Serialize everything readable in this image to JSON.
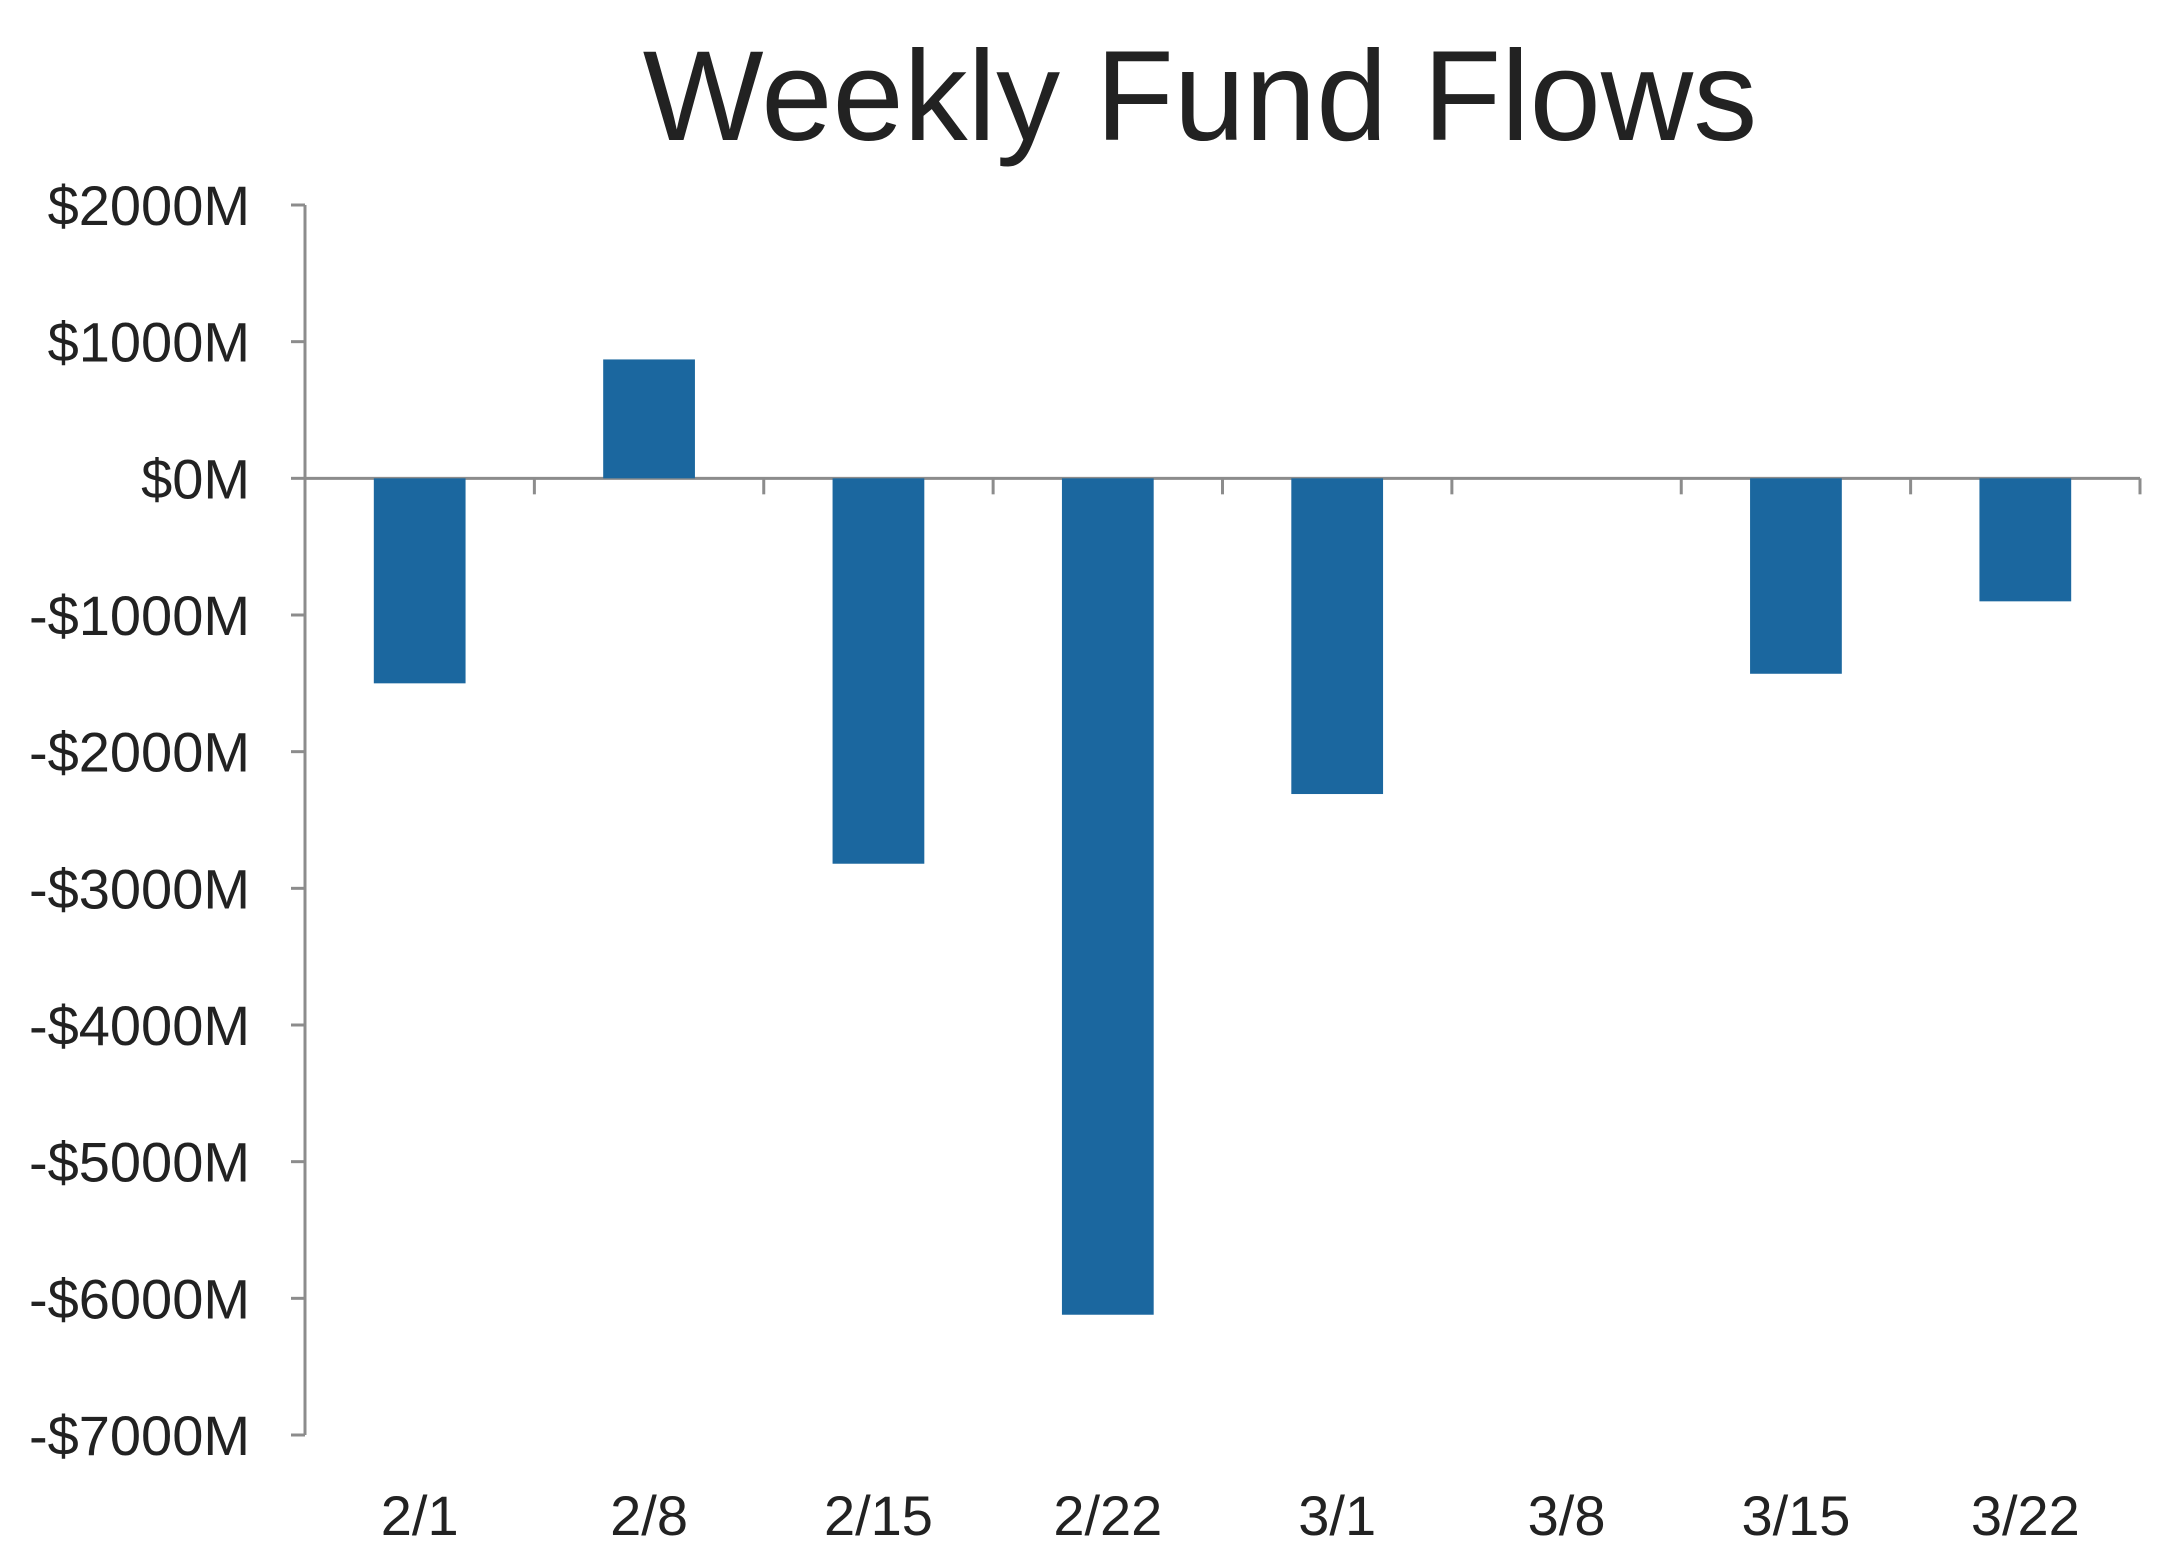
{
  "chart_data": {
    "type": "bar",
    "title": "Weekly Fund Flows",
    "xlabel": "",
    "ylabel": "",
    "categories": [
      "2/1",
      "2/8",
      "2/15",
      "2/22",
      "3/1",
      "3/8",
      "3/15",
      "3/22"
    ],
    "values": [
      -1500,
      870,
      -2820,
      -6120,
      -2310,
      0,
      -1430,
      -900
    ],
    "yticks": [
      2000,
      1000,
      0,
      -1000,
      -2000,
      -3000,
      -4000,
      -5000,
      -6000,
      -7000
    ],
    "ytick_labels": [
      "$2000M",
      "$1000M",
      "$0M",
      "-$1000M",
      "-$2000M",
      "-$3000M",
      "-$4000M",
      "-$5000M",
      "-$6000M",
      "-$7000M"
    ],
    "ylim": [
      -7000,
      2000
    ],
    "grid": false,
    "legend": "none",
    "colors": {
      "bar": "#1b679f"
    }
  }
}
